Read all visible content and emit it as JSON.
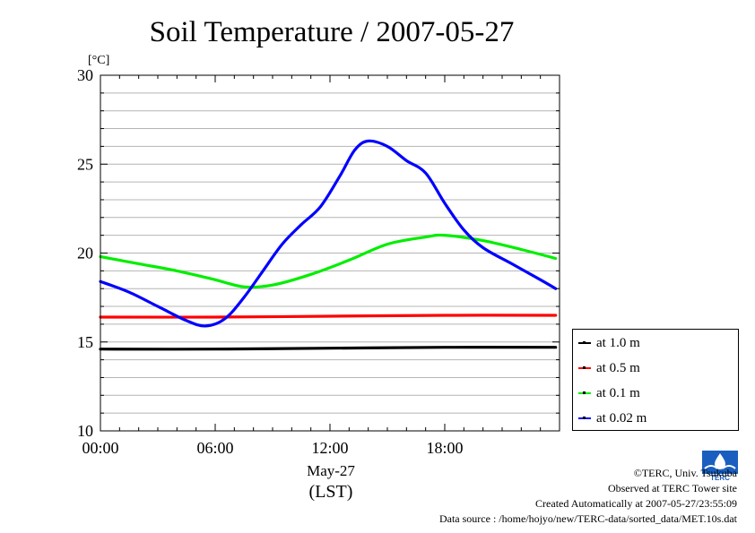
{
  "chart_data": {
    "type": "line",
    "title": "Soil Temperature / 2007-05-27",
    "ylabel": "[°C]",
    "ylim": [
      10,
      30
    ],
    "yticks": [
      10,
      15,
      20,
      25,
      30
    ],
    "xlim": [
      0,
      24
    ],
    "xticks": [
      {
        "value": 0,
        "label": "00:00"
      },
      {
        "value": 6,
        "label": "06:00"
      },
      {
        "value": 12,
        "label": "12:00"
      },
      {
        "value": 18,
        "label": "18:00"
      }
    ],
    "xlabel_date": "May-27",
    "xlabel": "(LST)",
    "grid": true,
    "legend_position": "right",
    "series": [
      {
        "name": "at 1.0 m",
        "color": "#000000",
        "x": [
          0,
          6,
          12,
          18,
          23.8
        ],
        "y": [
          14.6,
          14.6,
          14.65,
          14.7,
          14.7
        ]
      },
      {
        "name": "at 0.5 m",
        "color": "#ff0000",
        "x": [
          0,
          6,
          12,
          18,
          23.8
        ],
        "y": [
          16.4,
          16.4,
          16.45,
          16.5,
          16.5
        ]
      },
      {
        "name": "at 0.1 m",
        "color": "#00ee00",
        "x": [
          0,
          2,
          4,
          6,
          7.5,
          9,
          11,
          13,
          15,
          17,
          18,
          20,
          22,
          23.8
        ],
        "y": [
          19.8,
          19.4,
          19.0,
          18.5,
          18.1,
          18.2,
          18.8,
          19.6,
          20.5,
          20.9,
          21.0,
          20.7,
          20.2,
          19.7
        ]
      },
      {
        "name": "at 0.02 m",
        "color": "#0000ff",
        "x": [
          0,
          1.5,
          3,
          4.5,
          5.5,
          6.5,
          7.5,
          8.5,
          9.5,
          10.5,
          11.5,
          12.5,
          13.3,
          14,
          15,
          16,
          17,
          18,
          19,
          20,
          21.5,
          23,
          23.8
        ],
        "y": [
          18.4,
          17.8,
          17.0,
          16.2,
          15.9,
          16.3,
          17.5,
          19.0,
          20.5,
          21.6,
          22.6,
          24.3,
          25.8,
          26.3,
          26.0,
          25.2,
          24.5,
          22.8,
          21.3,
          20.3,
          19.4,
          18.5,
          18.0
        ]
      }
    ]
  },
  "credits": {
    "copyright": "©TERC, Univ. Tsukuba",
    "observed": "Observed at TERC Tower site",
    "created": "Created Automatically at 2007-05-27/23:55:09",
    "source": "Data source : /home/hojyo/new/TERC-data/sorted_data/MET.10s.dat"
  },
  "logo_text": "TERC"
}
